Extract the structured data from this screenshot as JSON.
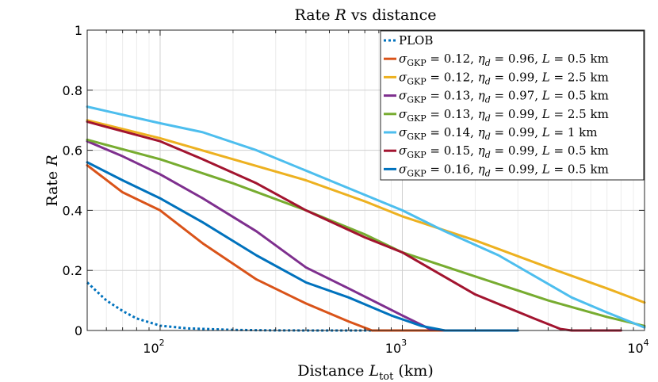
{
  "chart_data": {
    "type": "line",
    "title": "Rate R vs distance",
    "title_parts": {
      "prefix": "Rate ",
      "var": "R",
      "suffix": " vs distance"
    },
    "xlabel": "Distance L_tot (km)",
    "xlabel_parts": {
      "prefix": "Distance ",
      "var": "L",
      "sub": "tot",
      "suffix": " (km)"
    },
    "ylabel": "Rate R",
    "ylabel_parts": {
      "prefix": "Rate ",
      "var": "R"
    },
    "xscale": "log",
    "xlim": [
      50,
      10000
    ],
    "ylim": [
      0,
      1
    ],
    "grid": true,
    "legend_position": "top-right",
    "xticks": [
      {
        "value": 100,
        "base": "10",
        "exp": "2"
      },
      {
        "value": 1000,
        "base": "10",
        "exp": "3"
      },
      {
        "value": 10000,
        "base": "10",
        "exp": "4"
      }
    ],
    "yticks": [
      {
        "value": 0,
        "label": "0"
      },
      {
        "value": 0.2,
        "label": "0.2"
      },
      {
        "value": 0.4,
        "label": "0.4"
      },
      {
        "value": 0.6,
        "label": "0.6"
      },
      {
        "value": 0.8,
        "label": "0.8"
      },
      {
        "value": 1,
        "label": "1"
      }
    ],
    "series": [
      {
        "name": "PLOB",
        "label_text": "PLOB",
        "color": "#0072BD",
        "dashed": true,
        "points": [
          [
            50,
            0.16
          ],
          [
            60,
            0.1
          ],
          [
            70,
            0.065
          ],
          [
            80,
            0.04
          ],
          [
            100,
            0.016
          ],
          [
            130,
            0.007
          ],
          [
            200,
            0.002
          ],
          [
            300,
            0.0003
          ],
          [
            500,
            0
          ],
          [
            1000,
            0
          ],
          [
            3000,
            0
          ]
        ]
      },
      {
        "name": "σGKP = 0.12, ηd = 0.96, L = 0.5 km",
        "sigma": "0.12",
        "eta": "0.96",
        "L": "0.5 km",
        "color": "#D95319",
        "dashed": false,
        "points": [
          [
            50,
            0.55
          ],
          [
            70,
            0.46
          ],
          [
            100,
            0.4
          ],
          [
            150,
            0.29
          ],
          [
            250,
            0.17
          ],
          [
            400,
            0.09
          ],
          [
            600,
            0.03
          ],
          [
            750,
            0
          ],
          [
            1500,
            0
          ]
        ]
      },
      {
        "name": "σGKP = 0.12, ηd = 0.99, L = 2.5 km",
        "sigma": "0.12",
        "eta": "0.99",
        "L": "2.5 km",
        "color": "#EDB120",
        "dashed": false,
        "points": [
          [
            50,
            0.7
          ],
          [
            100,
            0.64
          ],
          [
            200,
            0.57
          ],
          [
            400,
            0.5
          ],
          [
            700,
            0.43
          ],
          [
            1000,
            0.38
          ],
          [
            2000,
            0.3
          ],
          [
            4000,
            0.21
          ],
          [
            7000,
            0.14
          ],
          [
            10000,
            0.093
          ]
        ]
      },
      {
        "name": "σGKP = 0.13, ηd = 0.97, L = 0.5 km",
        "sigma": "0.13",
        "eta": "0.97",
        "L": "0.5 km",
        "color": "#7E2F8E",
        "dashed": false,
        "points": [
          [
            50,
            0.63
          ],
          [
            70,
            0.58
          ],
          [
            100,
            0.52
          ],
          [
            150,
            0.44
          ],
          [
            250,
            0.33
          ],
          [
            400,
            0.21
          ],
          [
            600,
            0.14
          ],
          [
            1000,
            0.05
          ],
          [
            1300,
            0.005
          ],
          [
            1500,
            0
          ],
          [
            2500,
            0
          ]
        ]
      },
      {
        "name": "σGKP = 0.13, ηd = 0.99, L = 2.5 km",
        "sigma": "0.13",
        "eta": "0.99",
        "L": "2.5 km",
        "color": "#77AC30",
        "dashed": false,
        "points": [
          [
            50,
            0.635
          ],
          [
            100,
            0.57
          ],
          [
            200,
            0.49
          ],
          [
            400,
            0.4
          ],
          [
            700,
            0.32
          ],
          [
            1000,
            0.26
          ],
          [
            2000,
            0.18
          ],
          [
            4000,
            0.1
          ],
          [
            7000,
            0.045
          ],
          [
            10000,
            0.015
          ]
        ]
      },
      {
        "name": "σGKP = 0.14, ηd = 0.99, L = 1 km",
        "sigma": "0.14",
        "eta": "0.99",
        "L": "1 km",
        "color": "#4DBEEE",
        "dashed": false,
        "points": [
          [
            50,
            0.745
          ],
          [
            100,
            0.69
          ],
          [
            150,
            0.66
          ],
          [
            250,
            0.6
          ],
          [
            500,
            0.5
          ],
          [
            1000,
            0.4
          ],
          [
            1500,
            0.33
          ],
          [
            2500,
            0.25
          ],
          [
            5000,
            0.11
          ],
          [
            7000,
            0.06
          ],
          [
            10000,
            0.01
          ]
        ]
      },
      {
        "name": "σGKP = 0.15, ηd = 0.99, L = 0.5 km",
        "sigma": "0.15",
        "eta": "0.99",
        "L": "0.5 km",
        "color": "#A2142F",
        "dashed": false,
        "points": [
          [
            50,
            0.695
          ],
          [
            100,
            0.63
          ],
          [
            150,
            0.57
          ],
          [
            250,
            0.49
          ],
          [
            400,
            0.4
          ],
          [
            700,
            0.31
          ],
          [
            1000,
            0.26
          ],
          [
            2000,
            0.12
          ],
          [
            3500,
            0.04
          ],
          [
            4500,
            0.005
          ],
          [
            5000,
            0
          ],
          [
            8000,
            0
          ]
        ]
      },
      {
        "name": "σGKP = 0.16, ηd = 0.99, L = 0.5 km",
        "sigma": "0.16",
        "eta": "0.99",
        "L": "0.5 km",
        "color": "#0072BD",
        "dashed": false,
        "points": [
          [
            50,
            0.56
          ],
          [
            70,
            0.5
          ],
          [
            100,
            0.44
          ],
          [
            150,
            0.36
          ],
          [
            250,
            0.25
          ],
          [
            400,
            0.16
          ],
          [
            600,
            0.11
          ],
          [
            900,
            0.05
          ],
          [
            1200,
            0.015
          ],
          [
            1500,
            0
          ],
          [
            3000,
            0
          ]
        ]
      }
    ]
  }
}
